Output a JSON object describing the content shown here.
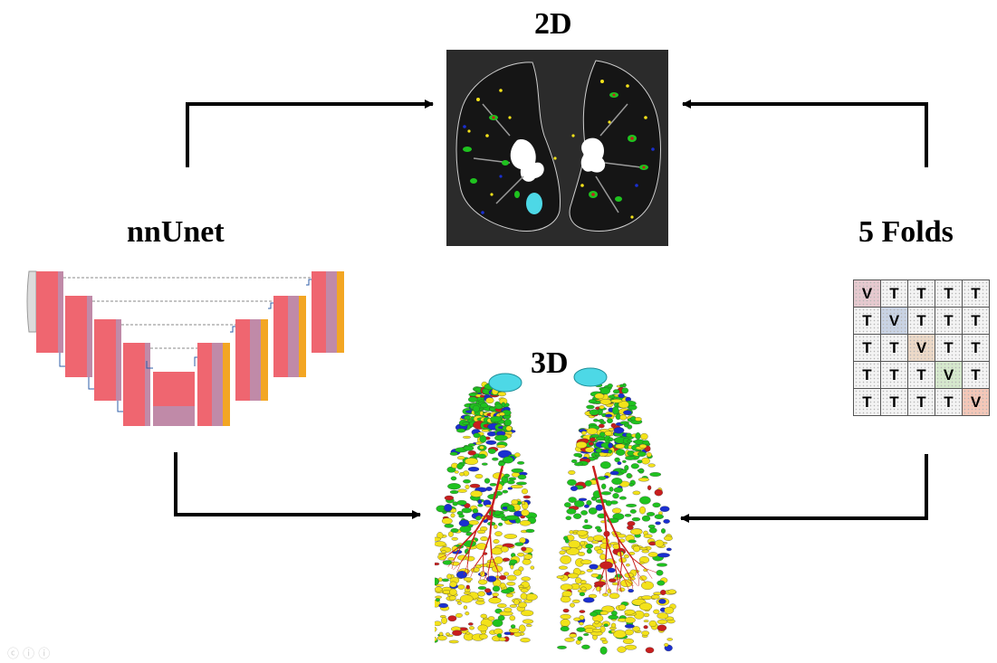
{
  "labels": {
    "top": "2D",
    "left": "nnUnet",
    "right": "5 Folds",
    "bottom": "3D"
  },
  "folds": {
    "rows": [
      [
        "V",
        "T",
        "T",
        "T",
        "T"
      ],
      [
        "T",
        "V",
        "T",
        "T",
        "T"
      ],
      [
        "T",
        "T",
        "V",
        "T",
        "T"
      ],
      [
        "T",
        "T",
        "T",
        "V",
        "T"
      ],
      [
        "T",
        "T",
        "T",
        "T",
        "V"
      ]
    ],
    "validation_colors": [
      "#e6c9cf",
      "#c9d3e4",
      "#ecd9c8",
      "#d5e8cd",
      "#f4c7b8"
    ]
  },
  "colors": {
    "arrow": "#000000",
    "ct_background": "#2b2b2b",
    "unet_block": "#ef6670",
    "unet_block_light": "#c08aa8",
    "unet_output": "#f3a623",
    "airway": "#4dd8e6",
    "seg_green": "#1fc21f",
    "seg_yellow": "#f3e21a",
    "seg_blue": "#1a2fd0",
    "seg_red": "#c81e1e"
  },
  "icons": [
    "watermark-icons"
  ]
}
